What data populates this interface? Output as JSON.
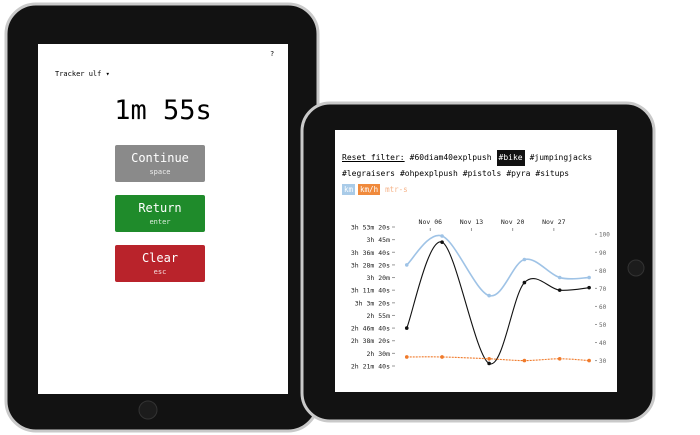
{
  "left_tablet": {
    "header": {
      "tracker": "Tracker ulf ▾",
      "help": "?"
    },
    "timer": "1m 55s",
    "buttons": [
      {
        "label": "Continue",
        "key": "space",
        "color": "#8a8a8a"
      },
      {
        "label": "Return",
        "key": "enter",
        "color": "#1f8b2b"
      },
      {
        "label": "Clear",
        "key": "esc",
        "color": "#b9232b"
      }
    ]
  },
  "right_tablet": {
    "filter": {
      "reset": "Reset filter:",
      "tags": [
        {
          "text": "#60diam40explpush",
          "active": false
        },
        {
          "text": "#bike",
          "active": true
        },
        {
          "text": "#jumpingjacks",
          "active": false
        },
        {
          "text": "#legraisers",
          "active": false
        },
        {
          "text": "#ohpexplpush",
          "active": false
        },
        {
          "text": "#pistols",
          "active": false
        },
        {
          "text": "#pyra",
          "active": false
        },
        {
          "text": "#situps",
          "active": false
        }
      ]
    },
    "units": [
      {
        "text": "km",
        "color": "#a9cbe8",
        "active": true
      },
      {
        "text": "km/h",
        "color": "#f08a3c",
        "active": true
      },
      {
        "text": "mtr-s",
        "color": "#f6b48a",
        "active": false
      }
    ],
    "chart_data": {
      "type": "line",
      "xlim": [
        0,
        34
      ],
      "xticks": [
        {
          "value": 6,
          "label": "Nov 06"
        },
        {
          "value": 13,
          "label": "Nov 13"
        },
        {
          "value": 20,
          "label": "Nov 20"
        },
        {
          "value": 27,
          "label": "Nov 27"
        }
      ],
      "ylim": [
        8500,
        14000
      ],
      "yticks": [
        {
          "value": 8500,
          "label": "2h 21m 40s"
        },
        {
          "value": 9000,
          "label": "2h 30m"
        },
        {
          "value": 9500,
          "label": "2h 38m 20s"
        },
        {
          "value": 10000,
          "label": "2h 46m 40s"
        },
        {
          "value": 10500,
          "label": "2h 55m"
        },
        {
          "value": 11000,
          "label": "3h 3m 20s"
        },
        {
          "value": 11500,
          "label": "3h 11m 40s"
        },
        {
          "value": 12000,
          "label": "3h 20m"
        },
        {
          "value": 12500,
          "label": "3h 28m 20s"
        },
        {
          "value": 13000,
          "label": "3h 36m 40s"
        },
        {
          "value": 13500,
          "label": "3h 45m"
        },
        {
          "value": 14000,
          "label": "3h 53m 20s"
        }
      ],
      "y2lim": [
        27,
        104
      ],
      "y2ticks": [
        30,
        40,
        50,
        60,
        70,
        80,
        90,
        100
      ],
      "x": [
        2,
        8,
        16,
        22,
        28,
        33
      ],
      "series": [
        {
          "color": "#111111",
          "values": [
            10000,
            13400,
            8600,
            11800,
            11500,
            11600
          ]
        },
        {
          "color": "#9fc3e6",
          "axis": "y2",
          "values": [
            83,
            99,
            66,
            86,
            76,
            76
          ]
        },
        {
          "color": "#f07a2a",
          "axis": "y2",
          "values": [
            32,
            32,
            31,
            30,
            31,
            30
          ]
        }
      ]
    }
  }
}
